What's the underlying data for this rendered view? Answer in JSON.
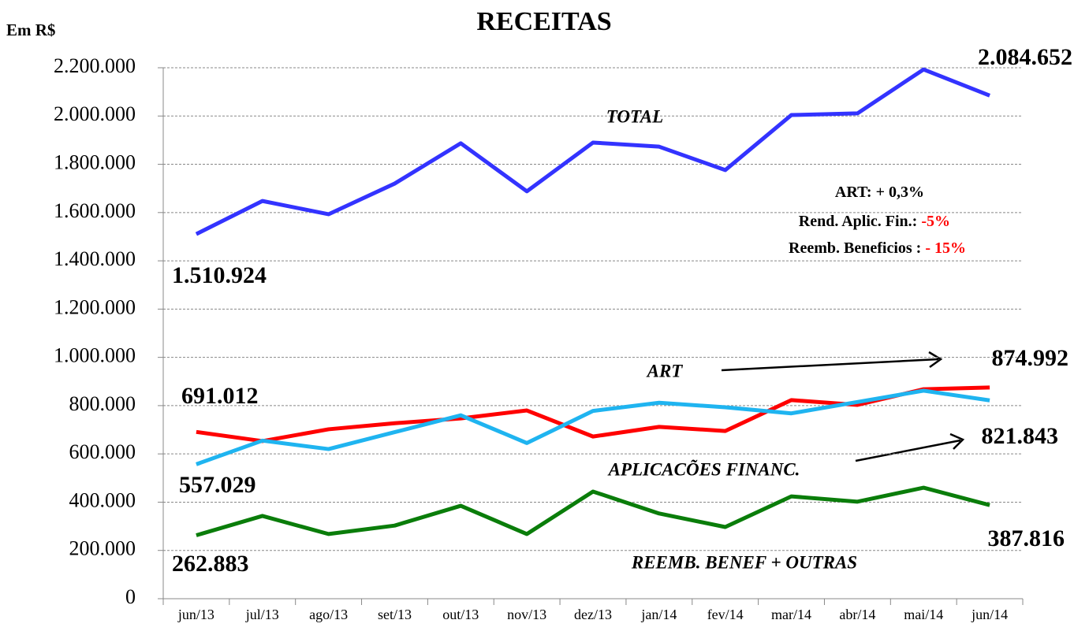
{
  "chart_data": {
    "type": "line",
    "title": "RECEITAS",
    "y_label": "Em R$",
    "categories": [
      "jun/13",
      "jul/13",
      "ago/13",
      "set/13",
      "out/13",
      "nov/13",
      "dez/13",
      "jan/14",
      "fev/14",
      "mar/14",
      "abr/14",
      "mai/14",
      "jun/14"
    ],
    "series": [
      {
        "name": "TOTAL",
        "color": "#3333ff",
        "values": [
          1510924,
          1648000,
          1593000,
          1720000,
          1887000,
          1688000,
          1890000,
          1873000,
          1776000,
          2004000,
          2011000,
          2193000,
          2084652
        ],
        "value_labels": [
          "1.510.924",
          null,
          null,
          null,
          null,
          null,
          null,
          null,
          null,
          null,
          null,
          null,
          "2.084.652"
        ]
      },
      {
        "name": "ART",
        "color": "#ff0000",
        "values": [
          691012,
          653000,
          702000,
          727000,
          747000,
          780000,
          672000,
          712000,
          695000,
          823000,
          803000,
          868000,
          874992
        ],
        "value_labels": [
          "691.012",
          null,
          null,
          null,
          null,
          null,
          null,
          null,
          null,
          null,
          null,
          null,
          "874.992"
        ]
      },
      {
        "name": "APLICACÕES FINANC.",
        "color": "#1fb4f0",
        "values": [
          557029,
          655000,
          620000,
          690000,
          760000,
          645000,
          778000,
          812000,
          793000,
          768000,
          815000,
          862000,
          821843
        ],
        "value_labels": [
          "557.029",
          null,
          null,
          null,
          null,
          null,
          null,
          null,
          null,
          null,
          null,
          null,
          "821.843"
        ]
      },
      {
        "name": "REEMB. BENEF + OUTRAS",
        "color": "#0a7d0a",
        "values": [
          262883,
          343000,
          268000,
          303000,
          385000,
          268000,
          444000,
          353000,
          297000,
          424000,
          402000,
          460000,
          387816
        ],
        "value_labels": [
          "262.883",
          null,
          null,
          null,
          null,
          null,
          null,
          null,
          null,
          null,
          null,
          null,
          "387.816"
        ]
      }
    ],
    "ylim": [
      0,
      2200000
    ],
    "yticks": [
      0,
      {
        "value": 200000,
        "label": "200.000"
      },
      {
        "value": 400000,
        "label": "400.000"
      },
      {
        "value": 600000,
        "label": "600.000"
      },
      {
        "value": 800000,
        "label": "800.000"
      },
      {
        "value": 1000000,
        "label": "1.000.000"
      },
      {
        "value": 1200000,
        "label": "1.200.000"
      },
      {
        "value": 1400000,
        "label": "1.400.000"
      },
      {
        "value": 1600000,
        "label": "1.600.000"
      },
      {
        "value": 1800000,
        "label": "1.800.000"
      },
      {
        "value": 2000000,
        "label": "2.000.000"
      },
      {
        "value": 2200000,
        "label": "2.200.000"
      }
    ],
    "grid": true,
    "annotations": [
      {
        "text": "ART: + 0,3%"
      },
      {
        "text": "Rend. Aplic. Fin.: ",
        "highlight": "-5%"
      },
      {
        "text": "Reemb. Beneficios : ",
        "highlight": "- 15%"
      }
    ]
  }
}
